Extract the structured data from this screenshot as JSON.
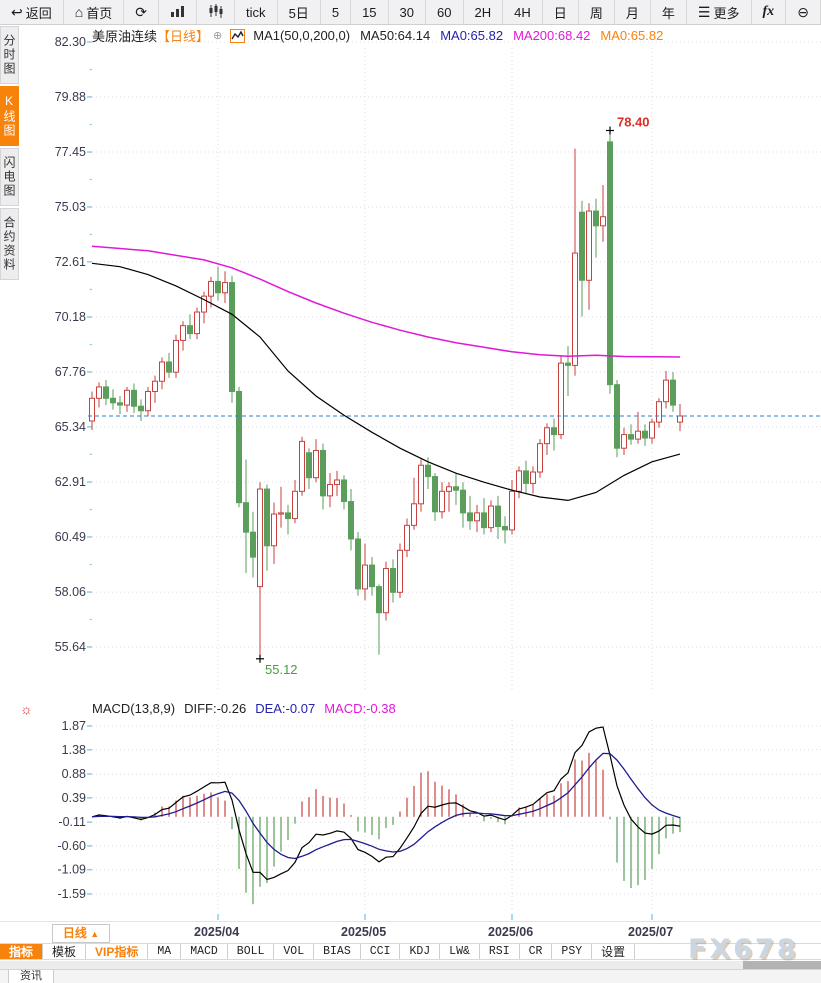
{
  "toolbar": {
    "items": [
      {
        "label": "返回",
        "icon": "back-icon",
        "glyph": "↩"
      },
      {
        "label": "首页",
        "icon": "home-icon",
        "glyph": "⌂"
      },
      {
        "label": "",
        "icon": "refresh-icon",
        "glyph": "⟳"
      },
      {
        "label": "",
        "icon": "bar-chart-icon",
        "glyph": "svg-bars"
      },
      {
        "label": "",
        "icon": "candlestick-icon",
        "glyph": "svg-candles"
      },
      {
        "label": "tick"
      },
      {
        "label": "5日"
      },
      {
        "label": "5"
      },
      {
        "label": "15"
      },
      {
        "label": "30"
      },
      {
        "label": "60"
      },
      {
        "label": "2H"
      },
      {
        "label": "4H"
      },
      {
        "label": "日"
      },
      {
        "label": "周"
      },
      {
        "label": "月"
      },
      {
        "label": "年"
      },
      {
        "label": "更多",
        "icon": "menu-icon",
        "glyph": "☰"
      },
      {
        "label": "fx",
        "icon": "fx-icon",
        "glyph": "fx"
      },
      {
        "label": "",
        "icon": "zoom-out-icon",
        "glyph": "⊖"
      }
    ]
  },
  "sidebar": {
    "items": [
      {
        "label": "分时图",
        "active": false
      },
      {
        "label": "K线图",
        "active": true
      },
      {
        "label": "闪电图",
        "active": false
      },
      {
        "label": "合约资料",
        "active": false
      }
    ]
  },
  "chart_header": {
    "title": "美原油连续",
    "period_tag": "【日线】",
    "collapse_icon": "⊕",
    "ma_items": [
      {
        "text": "MA1(50,0,200,0)",
        "color": "#222222"
      },
      {
        "text": "MA50:64.14",
        "color": "#222222"
      },
      {
        "text": "MA0:65.82",
        "color": "#2424a8"
      },
      {
        "text": "MA200:68.42",
        "color": "#e018d8"
      },
      {
        "text": "MA0:65.82",
        "color": "#f7820c"
      }
    ]
  },
  "chart_data": {
    "type": "candlestick",
    "symbol": "美原油连续",
    "period": "日线",
    "y_ticks": [
      82.3,
      79.88,
      77.45,
      75.03,
      72.61,
      70.18,
      67.76,
      65.34,
      62.91,
      60.49,
      58.06,
      55.64
    ],
    "last_price": 65.82,
    "annotations": {
      "high": {
        "index": 74,
        "price": 78.4,
        "label": "78.40"
      },
      "low": {
        "index": 24,
        "price": 55.12,
        "label": "55.12"
      }
    },
    "month_ticks": [
      {
        "label": "2025/04",
        "index": 18
      },
      {
        "label": "2025/05",
        "index": 39
      },
      {
        "label": "2025/06",
        "index": 60
      },
      {
        "label": "2025/07",
        "index": 80
      }
    ],
    "candles": [
      [
        65.6,
        66.9,
        65.2,
        66.6
      ],
      [
        66.6,
        67.3,
        66.2,
        67.1
      ],
      [
        67.1,
        67.4,
        66.3,
        66.6
      ],
      [
        66.6,
        67.0,
        66.1,
        66.4
      ],
      [
        66.4,
        66.7,
        65.9,
        66.3
      ],
      [
        66.3,
        67.1,
        66.0,
        66.95
      ],
      [
        66.95,
        67.25,
        65.95,
        66.25
      ],
      [
        66.25,
        66.55,
        65.6,
        66.05
      ],
      [
        66.05,
        67.1,
        65.8,
        66.9
      ],
      [
        66.9,
        67.6,
        66.4,
        67.35
      ],
      [
        67.35,
        68.4,
        67.0,
        68.2
      ],
      [
        68.2,
        68.6,
        67.5,
        67.75
      ],
      [
        67.75,
        69.4,
        67.5,
        69.15
      ],
      [
        69.15,
        70.0,
        68.7,
        69.8
      ],
      [
        69.8,
        70.3,
        69.2,
        69.45
      ],
      [
        69.45,
        70.6,
        69.2,
        70.4
      ],
      [
        70.4,
        71.3,
        69.9,
        71.1
      ],
      [
        71.1,
        71.95,
        70.6,
        71.75
      ],
      [
        71.75,
        72.4,
        70.9,
        71.25
      ],
      [
        71.25,
        72.2,
        70.8,
        71.7
      ],
      [
        71.7,
        72.0,
        66.4,
        66.9
      ],
      [
        66.9,
        67.1,
        61.8,
        62.0
      ],
      [
        62.0,
        63.9,
        58.9,
        60.7
      ],
      [
        60.7,
        61.6,
        58.7,
        59.6
      ],
      [
        58.3,
        62.9,
        55.12,
        62.6
      ],
      [
        62.6,
        62.8,
        59.0,
        60.1
      ],
      [
        60.1,
        62.0,
        59.3,
        61.5
      ],
      [
        61.5,
        62.7,
        60.9,
        61.55
      ],
      [
        61.55,
        61.9,
        60.6,
        61.3
      ],
      [
        61.3,
        63.0,
        61.1,
        62.5
      ],
      [
        62.5,
        64.9,
        62.3,
        64.7
      ],
      [
        64.2,
        64.4,
        62.6,
        63.1
      ],
      [
        63.1,
        64.8,
        62.9,
        64.3
      ],
      [
        64.3,
        64.6,
        61.7,
        62.3
      ],
      [
        62.3,
        63.3,
        61.8,
        62.8
      ],
      [
        62.8,
        63.4,
        62.3,
        63.0
      ],
      [
        63.0,
        63.2,
        61.7,
        62.05
      ],
      [
        62.05,
        62.6,
        59.9,
        60.4
      ],
      [
        60.4,
        60.7,
        57.9,
        58.2
      ],
      [
        58.2,
        60.2,
        57.7,
        59.25
      ],
      [
        59.25,
        59.6,
        57.9,
        58.3
      ],
      [
        58.3,
        58.4,
        55.3,
        57.15
      ],
      [
        57.15,
        59.4,
        56.8,
        59.1
      ],
      [
        59.1,
        59.5,
        57.6,
        58.05
      ],
      [
        58.05,
        60.2,
        57.8,
        59.9
      ],
      [
        59.9,
        61.3,
        59.6,
        61.0
      ],
      [
        61.0,
        63.1,
        60.8,
        61.95
      ],
      [
        61.95,
        63.9,
        61.6,
        63.65
      ],
      [
        63.65,
        64.0,
        62.6,
        63.15
      ],
      [
        63.15,
        63.3,
        61.2,
        61.6
      ],
      [
        61.6,
        62.9,
        61.3,
        62.5
      ],
      [
        62.5,
        62.9,
        61.6,
        62.7
      ],
      [
        62.7,
        63.3,
        61.9,
        62.55
      ],
      [
        62.55,
        62.9,
        60.9,
        61.55
      ],
      [
        61.55,
        62.3,
        60.8,
        61.2
      ],
      [
        61.2,
        61.9,
        60.7,
        61.55
      ],
      [
        61.55,
        62.2,
        60.6,
        60.9
      ],
      [
        60.9,
        62.1,
        60.7,
        61.85
      ],
      [
        61.85,
        62.3,
        60.4,
        60.95
      ],
      [
        60.95,
        61.4,
        60.2,
        60.8
      ],
      [
        60.8,
        63.0,
        60.6,
        62.5
      ],
      [
        62.5,
        63.6,
        62.2,
        63.4
      ],
      [
        63.4,
        63.85,
        62.4,
        62.85
      ],
      [
        62.85,
        63.6,
        62.4,
        63.35
      ],
      [
        63.35,
        64.8,
        63.1,
        64.6
      ],
      [
        64.6,
        65.5,
        64.1,
        65.3
      ],
      [
        65.3,
        65.7,
        64.3,
        65.0
      ],
      [
        65.0,
        68.5,
        64.8,
        68.15
      ],
      [
        68.15,
        68.9,
        66.7,
        68.05
      ],
      [
        68.05,
        77.6,
        67.6,
        73.0
      ],
      [
        74.8,
        75.3,
        70.2,
        71.8
      ],
      [
        71.8,
        75.2,
        70.5,
        74.85
      ],
      [
        74.85,
        75.4,
        72.8,
        74.2
      ],
      [
        74.2,
        76.0,
        73.5,
        74.6
      ],
      [
        77.9,
        78.4,
        66.8,
        67.2
      ],
      [
        67.2,
        67.4,
        64.0,
        64.4
      ],
      [
        64.4,
        65.3,
        64.1,
        65.0
      ],
      [
        65.0,
        65.45,
        64.55,
        64.8
      ],
      [
        64.8,
        66.0,
        64.6,
        65.15
      ],
      [
        65.15,
        65.45,
        64.5,
        64.85
      ],
      [
        64.85,
        65.7,
        64.6,
        65.55
      ],
      [
        65.55,
        66.6,
        65.3,
        66.45
      ],
      [
        66.45,
        67.8,
        66.15,
        67.4
      ],
      [
        67.4,
        67.75,
        66.0,
        66.3
      ],
      [
        65.55,
        66.35,
        65.15,
        65.82
      ]
    ],
    "ma50_points": [
      [
        0,
        72.55
      ],
      [
        4,
        72.4
      ],
      [
        8,
        72.05
      ],
      [
        12,
        71.55
      ],
      [
        16,
        70.95
      ],
      [
        20,
        70.3
      ],
      [
        24,
        69.3
      ],
      [
        28,
        67.8
      ],
      [
        32,
        66.7
      ],
      [
        36,
        65.85
      ],
      [
        40,
        65.1
      ],
      [
        44,
        64.4
      ],
      [
        48,
        63.8
      ],
      [
        52,
        63.3
      ],
      [
        56,
        62.9
      ],
      [
        60,
        62.55
      ],
      [
        64,
        62.25
      ],
      [
        68,
        62.1
      ],
      [
        72,
        62.45
      ],
      [
        76,
        63.2
      ],
      [
        80,
        63.8
      ],
      [
        84,
        64.14
      ]
    ],
    "ma200_points": [
      [
        0,
        73.3
      ],
      [
        8,
        73.1
      ],
      [
        16,
        72.7
      ],
      [
        20,
        72.35
      ],
      [
        24,
        71.85
      ],
      [
        28,
        71.3
      ],
      [
        32,
        70.8
      ],
      [
        36,
        70.35
      ],
      [
        40,
        69.95
      ],
      [
        44,
        69.6
      ],
      [
        48,
        69.3
      ],
      [
        52,
        69.05
      ],
      [
        56,
        68.85
      ],
      [
        60,
        68.65
      ],
      [
        64,
        68.52
      ],
      [
        68,
        68.45
      ],
      [
        72,
        68.5
      ],
      [
        76,
        68.44
      ],
      [
        80,
        68.43
      ],
      [
        84,
        68.42
      ]
    ]
  },
  "macd_panel": {
    "params": "13,8,9",
    "legend": [
      {
        "text": "MACD(13,8,9)",
        "color": "#222222"
      },
      {
        "text": "DIFF:-0.26",
        "color": "#222222"
      },
      {
        "text": "DEA:-0.07",
        "color": "#2424a8"
      },
      {
        "text": "MACD:-0.38",
        "color": "#e018d8"
      }
    ],
    "y_ticks": [
      1.87,
      1.38,
      0.88,
      0.39,
      -0.11,
      -0.6,
      -1.09,
      -1.59
    ]
  },
  "x_axis": {
    "period_selector": "日线",
    "period_arrow": "▲"
  },
  "bottom_tabs": [
    {
      "label": "指标",
      "style": "active"
    },
    {
      "label": "模板",
      "style": "normal"
    },
    {
      "label": "VIP指标",
      "style": "vip"
    },
    {
      "label": "MA",
      "style": "mono"
    },
    {
      "label": "MACD",
      "style": "mono"
    },
    {
      "label": "BOLL",
      "style": "mono"
    },
    {
      "label": "VOL",
      "style": "mono"
    },
    {
      "label": "BIAS",
      "style": "mono"
    },
    {
      "label": "CCI",
      "style": "mono"
    },
    {
      "label": "KDJ",
      "style": "mono"
    },
    {
      "label": "LW&",
      "style": "mono"
    },
    {
      "label": "RSI",
      "style": "mono"
    },
    {
      "label": "CR",
      "style": "mono"
    },
    {
      "label": "PSY",
      "style": "mono"
    },
    {
      "label": "设置",
      "style": "normal"
    }
  ],
  "watermark": "FX678",
  "status_bar": {
    "tab": "资讯"
  },
  "colors": {
    "up": "#c9413f",
    "down": "#5b9e5b",
    "ma50": "#000000",
    "ma200": "#e018d8",
    "diff_line": "#000000",
    "dea_line": "#1d1d8f",
    "last_price_line": "#2e7fd2",
    "accent": "#f7820c",
    "annotation_high": "#d93025",
    "annotation_low": "#3fa03f",
    "grid": "#dcdce2",
    "axis_text": "#3a3a4e",
    "edge_tick": "#8fd4ee"
  }
}
